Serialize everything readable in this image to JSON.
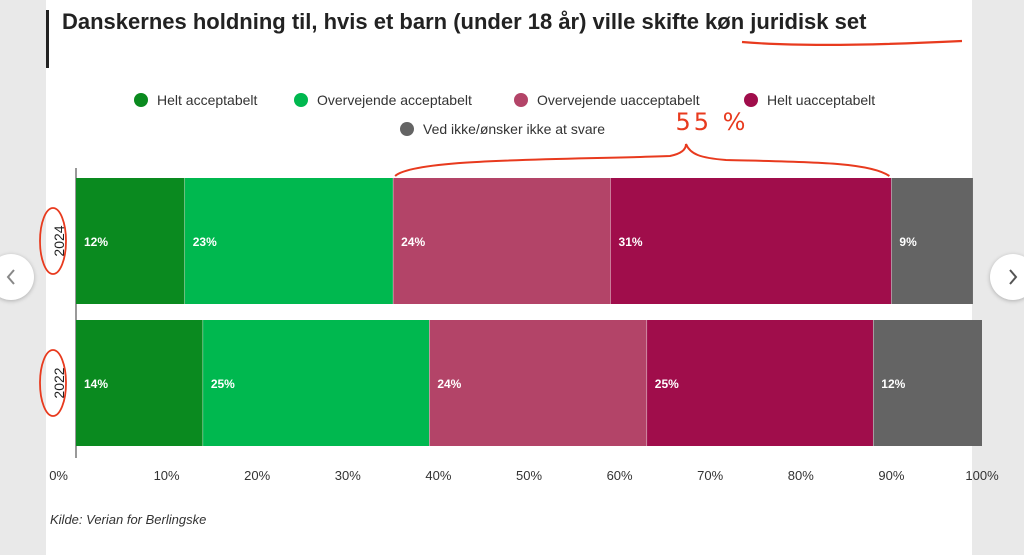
{
  "chart_data": {
    "type": "bar",
    "orientation": "horizontal",
    "stacked": true,
    "title": "Danskernes holdning til, hvis et barn (under 18 år) ville skifte køn juridisk set",
    "categories": [
      "2024",
      "2022"
    ],
    "series": [
      {
        "name": "Helt acceptabelt",
        "color": "#0a8a1f",
        "values": [
          12,
          14
        ],
        "labels": [
          "12%",
          "14%"
        ]
      },
      {
        "name": "Overvejende acceptabelt",
        "color": "#00b84f",
        "values": [
          23,
          25
        ],
        "labels": [
          "23%",
          "25%"
        ]
      },
      {
        "name": "Overvejende uacceptabelt",
        "color": "#b34468",
        "values": [
          24,
          24
        ],
        "labels": [
          "24%",
          "24%"
        ]
      },
      {
        "name": "Helt uacceptabelt",
        "color": "#a00d4b",
        "values": [
          31,
          25
        ],
        "labels": [
          "31%",
          "25%"
        ]
      },
      {
        "name": "Ved ikke/ønsker ikke at svare",
        "color": "#646464",
        "values": [
          9,
          12
        ],
        "labels": [
          "9%",
          "12%"
        ]
      }
    ],
    "xlim": [
      0,
      100
    ],
    "xticks": [
      "0%",
      "10%",
      "20%",
      "30%",
      "40%",
      "50%",
      "60%",
      "70%",
      "80%",
      "90%",
      "100%"
    ],
    "legend_position": "top",
    "annotation": {
      "text": "55 %",
      "color": "#e83a1e"
    }
  },
  "source": "Kilde: Verian for Berlingske",
  "nav": {
    "prev_icon": "chevron-left-icon",
    "next_icon": "chevron-right-icon"
  }
}
